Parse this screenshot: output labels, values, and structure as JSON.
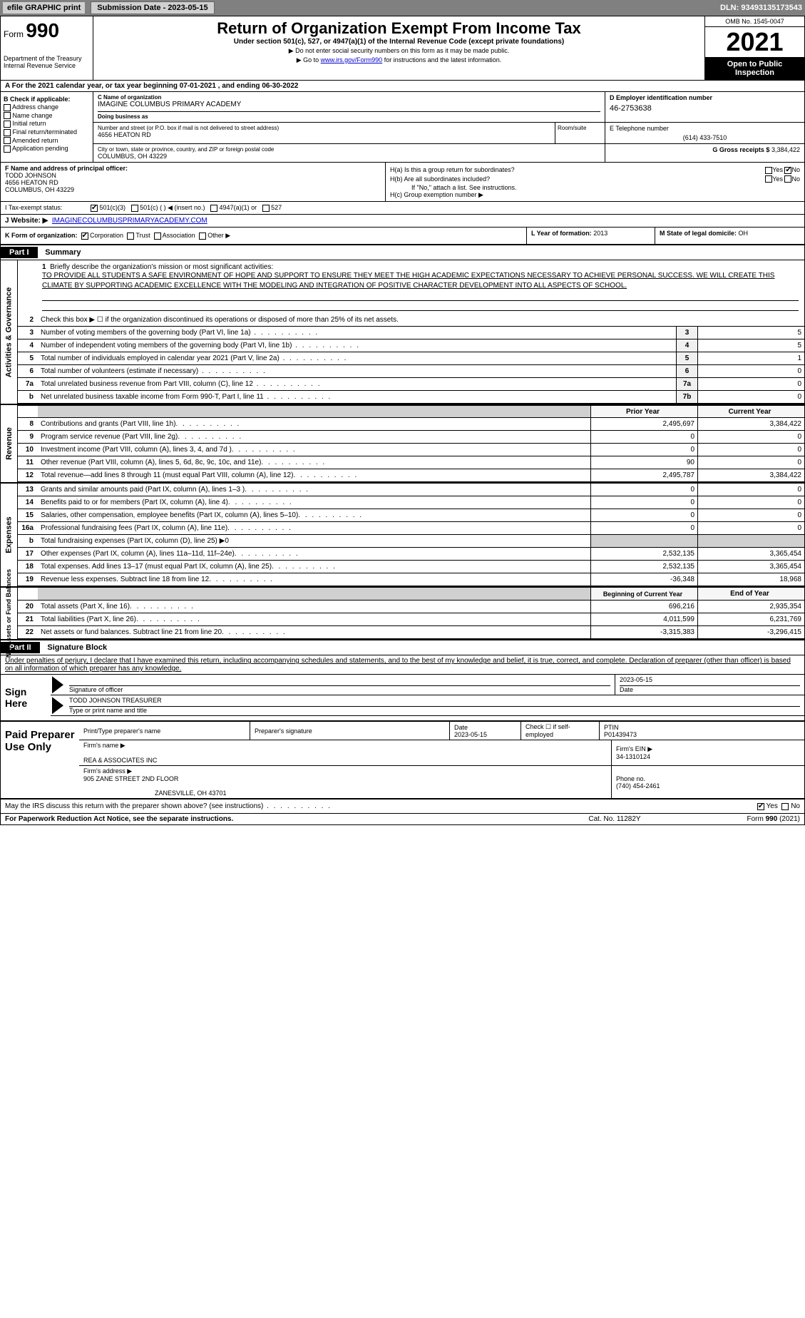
{
  "topbar": {
    "efile": "efile GRAPHIC print",
    "submission": "Submission Date - 2023-05-15",
    "dln": "DLN: 93493135173543"
  },
  "header": {
    "form_prefix": "Form",
    "form_num": "990",
    "title": "Return of Organization Exempt From Income Tax",
    "subtitle": "Under section 501(c), 527, or 4947(a)(1) of the Internal Revenue Code (except private foundations)",
    "note1": "▶ Do not enter social security numbers on this form as it may be made public.",
    "note2_pre": "▶ Go to ",
    "note2_link": "www.irs.gov/Form990",
    "note2_post": " for instructions and the latest information.",
    "dept": "Department of the Treasury\nInternal Revenue Service",
    "omb": "OMB No. 1545-0047",
    "year": "2021",
    "open": "Open to Public Inspection"
  },
  "period": {
    "text": "A For the 2021 calendar year, or tax year beginning 07-01-2021    , and ending 06-30-2022"
  },
  "checkB": {
    "label": "B Check if applicable:",
    "items": [
      "Address change",
      "Name change",
      "Initial return",
      "Final return/terminated",
      "Amended return",
      "Application pending"
    ]
  },
  "nameC": {
    "label": "C Name of organization",
    "val": "IMAGINE COLUMBUS PRIMARY ACADEMY",
    "dba_label": "Doing business as",
    "dba": ""
  },
  "addr": {
    "street_label": "Number and street (or P.O. box if mail is not delivered to street address)",
    "street": "4656 HEATON RD",
    "room_label": "Room/suite",
    "city_label": "City or town, state or province, country, and ZIP or foreign postal code",
    "city": "COLUMBUS, OH  43229"
  },
  "einD": {
    "label": "D Employer identification number",
    "val": "46-2753638"
  },
  "telE": {
    "label": "E Telephone number",
    "val": "(614) 433-7510"
  },
  "grossG": {
    "label": "G Gross receipts $",
    "val": "3,384,422"
  },
  "officerF": {
    "label": "F  Name and address of principal officer:",
    "name": "TODD JOHNSON",
    "street": "4656 HEATON RD",
    "city": "COLUMBUS, OH  43229"
  },
  "groupH": {
    "a_label": "H(a)  Is this a group return for subordinates?",
    "a_yes": "Yes",
    "a_no": "No",
    "b_label": "H(b)  Are all subordinates included?",
    "b_attach": "If \"No,\" attach a list. See instructions.",
    "c_label": "H(c)  Group exemption number ▶"
  },
  "taxI": {
    "label": "I  Tax-exempt status:",
    "opt1": "501(c)(3)",
    "opt2": "501(c) (   ) ◀ (insert no.)",
    "opt3": "4947(a)(1) or",
    "opt4": "527"
  },
  "webJ": {
    "label": "J  Website: ▶",
    "val": "IMAGINECOLUMBUSPRIMARYACADEMY.COM"
  },
  "orgK": {
    "label": "K Form of organization:",
    "corp": "Corporation",
    "trust": "Trust",
    "assoc": "Association",
    "other": "Other ▶"
  },
  "yearL": {
    "label": "L Year of formation:",
    "val": "2013"
  },
  "stateM": {
    "label": "M State of legal domicile:",
    "val": "OH"
  },
  "part1": {
    "hdr": "Part I",
    "title": "Summary"
  },
  "mission": {
    "num": "1",
    "label": "Briefly describe the organization's mission or most significant activities:",
    "text": "TO PROVIDE ALL STUDENTS A SAFE ENVIRONMENT OF HOPE AND SUPPORT TO ENSURE THEY MEET THE HIGH ACADEMIC EXPECTATIONS NECESSARY TO ACHIEVE PERSONAL SUCCESS. WE WILL CREATE THIS CLIMATE BY SUPPORTING ACADEMIC EXCELLENCE WITH THE MODELING AND INTEGRATION OF POSITIVE CHARACTER DEVELOPMENT INTO ALL ASPECTS OF SCHOOL."
  },
  "gov": {
    "q2": "Check this box ▶ ☐  if the organization discontinued its operations or disposed of more than 25% of its net assets.",
    "rows": [
      {
        "n": "3",
        "t": "Number of voting members of the governing body (Part VI, line 1a)",
        "box": "3",
        "v": "5"
      },
      {
        "n": "4",
        "t": "Number of independent voting members of the governing body (Part VI, line 1b)",
        "box": "4",
        "v": "5"
      },
      {
        "n": "5",
        "t": "Total number of individuals employed in calendar year 2021 (Part V, line 2a)",
        "box": "5",
        "v": "1"
      },
      {
        "n": "6",
        "t": "Total number of volunteers (estimate if necessary)",
        "box": "6",
        "v": "0"
      },
      {
        "n": "7a",
        "t": "Total unrelated business revenue from Part VIII, column (C), line 12",
        "box": "7a",
        "v": "0"
      },
      {
        "n": "b",
        "t": "Net unrelated business taxable income from Form 990-T, Part I, line 11",
        "box": "7b",
        "v": "0"
      }
    ]
  },
  "fin_hdr": {
    "prior": "Prior Year",
    "curr": "Current Year"
  },
  "revenue": {
    "side": "Revenue",
    "rows": [
      {
        "n": "8",
        "t": "Contributions and grants (Part VIII, line 1h)",
        "p": "2,495,697",
        "c": "3,384,422"
      },
      {
        "n": "9",
        "t": "Program service revenue (Part VIII, line 2g)",
        "p": "0",
        "c": "0"
      },
      {
        "n": "10",
        "t": "Investment income (Part VIII, column (A), lines 3, 4, and 7d )",
        "p": "0",
        "c": "0"
      },
      {
        "n": "11",
        "t": "Other revenue (Part VIII, column (A), lines 5, 6d, 8c, 9c, 10c, and 11e)",
        "p": "90",
        "c": "0"
      },
      {
        "n": "12",
        "t": "Total revenue—add lines 8 through 11 (must equal Part VIII, column (A), line 12)",
        "p": "2,495,787",
        "c": "3,384,422"
      }
    ]
  },
  "expenses": {
    "side": "Expenses",
    "rows": [
      {
        "n": "13",
        "t": "Grants and similar amounts paid (Part IX, column (A), lines 1–3 )",
        "p": "0",
        "c": "0"
      },
      {
        "n": "14",
        "t": "Benefits paid to or for members (Part IX, column (A), line 4)",
        "p": "0",
        "c": "0"
      },
      {
        "n": "15",
        "t": "Salaries, other compensation, employee benefits (Part IX, column (A), lines 5–10)",
        "p": "0",
        "c": "0"
      },
      {
        "n": "16a",
        "t": "Professional fundraising fees (Part IX, column (A), line 11e)",
        "p": "0",
        "c": "0"
      }
    ],
    "line_b": {
      "n": "b",
      "t": "Total fundraising expenses (Part IX, column (D), line 25) ▶0"
    },
    "rows2": [
      {
        "n": "17",
        "t": "Other expenses (Part IX, column (A), lines 11a–11d, 11f–24e)",
        "p": "2,532,135",
        "c": "3,365,454"
      },
      {
        "n": "18",
        "t": "Total expenses. Add lines 13–17 (must equal Part IX, column (A), line 25)",
        "p": "2,532,135",
        "c": "3,365,454"
      },
      {
        "n": "19",
        "t": "Revenue less expenses. Subtract line 18 from line 12",
        "p": "-36,348",
        "c": "18,968"
      }
    ]
  },
  "net_hdr": {
    "prior": "Beginning of Current Year",
    "curr": "End of Year"
  },
  "netassets": {
    "side": "Net Assets or Fund Balances",
    "rows": [
      {
        "n": "20",
        "t": "Total assets (Part X, line 16)",
        "p": "696,216",
        "c": "2,935,354"
      },
      {
        "n": "21",
        "t": "Total liabilities (Part X, line 26)",
        "p": "4,011,599",
        "c": "6,231,769"
      },
      {
        "n": "22",
        "t": "Net assets or fund balances. Subtract line 21 from line 20",
        "p": "-3,315,383",
        "c": "-3,296,415"
      }
    ]
  },
  "part2": {
    "hdr": "Part II",
    "title": "Signature Block"
  },
  "sig_decl": "Under penalties of perjury, I declare that I have examined this return, including accompanying schedules and statements, and to the best of my knowledge and belief, it is true, correct, and complete. Declaration of preparer (other than officer) is based on all information of which preparer has any knowledge.",
  "sign": {
    "here": "Sign Here",
    "sig_label": "Signature of officer",
    "date": "2023-05-15",
    "date_label": "Date",
    "name": "TODD JOHNSON  TREASURER",
    "name_label": "Type or print name and title"
  },
  "prep": {
    "left": "Paid Preparer Use Only",
    "h1": "Print/Type preparer's name",
    "h2": "Preparer's signature",
    "h3": "Date",
    "h3v": "2023-05-15",
    "h4": "Check ☐ if self-employed",
    "h5": "PTIN",
    "h5v": "P01439473",
    "firm_label": "Firm's name    ▶",
    "firm": "REA & ASSOCIATES INC",
    "ein_label": "Firm's EIN ▶",
    "ein": "34-1310124",
    "addr_label": "Firm's address ▶",
    "addr1": "905 ZANE STREET 2ND FLOOR",
    "addr2": "ZANESVILLE, OH  43701",
    "phone_label": "Phone no.",
    "phone": "(740) 454-2461"
  },
  "discuss": {
    "text": "May the IRS discuss this return with the preparer shown above? (see instructions)",
    "yes": "Yes",
    "no": "No"
  },
  "footer": {
    "pra": "For Paperwork Reduction Act Notice, see the separate instructions.",
    "cat": "Cat. No. 11282Y",
    "form": "Form 990 (2021)"
  },
  "colors": {
    "black": "#000000",
    "gray": "#808080",
    "link": "#0000cc"
  }
}
